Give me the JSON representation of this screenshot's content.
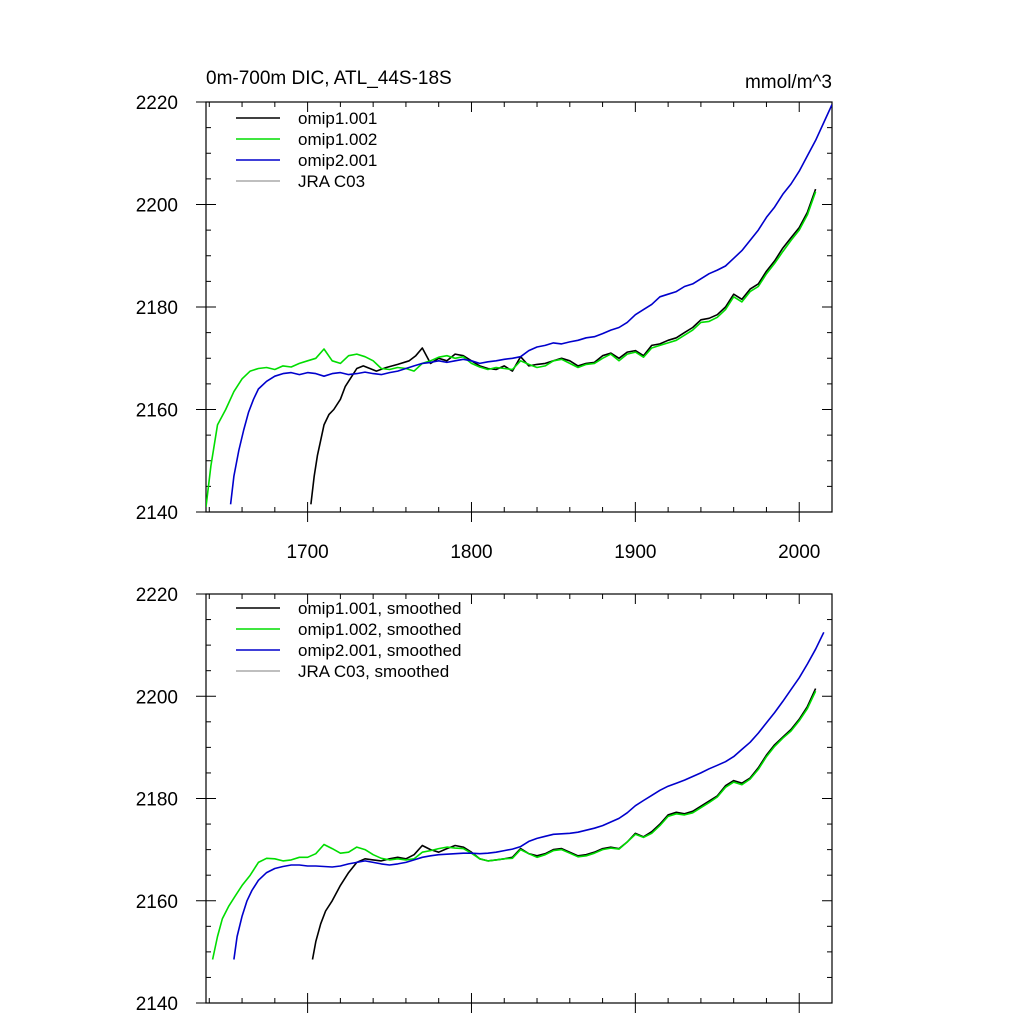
{
  "chart_data": [
    {
      "type": "line",
      "title": "0m-700m DIC, ATL_44S-18S",
      "units": "mmol/m^3",
      "xlim": [
        1638,
        2020
      ],
      "ylim": [
        2140,
        2220
      ],
      "xticks": [
        1700,
        1800,
        1900,
        2000
      ],
      "yticks": [
        2140,
        2160,
        2180,
        2200,
        2220
      ],
      "grid": false,
      "legend_position": "top-left",
      "series": [
        {
          "name": "omip1.001",
          "color": "#000000",
          "x": [
            1702,
            1704,
            1706,
            1708,
            1710,
            1713,
            1716,
            1720,
            1723,
            1726,
            1730,
            1734,
            1738,
            1742,
            1748,
            1755,
            1762,
            1766,
            1770,
            1775,
            1780,
            1785,
            1790,
            1795,
            1800,
            1805,
            1810,
            1815,
            1820,
            1825,
            1830,
            1835,
            1840,
            1845,
            1850,
            1855,
            1860,
            1865,
            1870,
            1875,
            1880,
            1885,
            1890,
            1895,
            1900,
            1905,
            1910,
            1915,
            1920,
            1925,
            1930,
            1935,
            1940,
            1945,
            1950,
            1955,
            1960,
            1965,
            1970,
            1975,
            1980,
            1985,
            1990,
            1995,
            2000,
            2005,
            2010
          ],
          "y": [
            2141.5,
            2147,
            2151,
            2154,
            2157,
            2159,
            2160,
            2162,
            2164.5,
            2166,
            2168,
            2168.5,
            2168,
            2167.5,
            2168.2,
            2168.8,
            2169.5,
            2170.5,
            2172,
            2169,
            2170,
            2169.5,
            2170.8,
            2170.5,
            2169.5,
            2168.5,
            2168,
            2167.8,
            2168.5,
            2167.5,
            2170.3,
            2168.5,
            2168.8,
            2169,
            2169.5,
            2170,
            2169.5,
            2168.5,
            2169,
            2169.2,
            2170.5,
            2171,
            2170,
            2171.2,
            2171.5,
            2170.5,
            2172.5,
            2172.8,
            2173.5,
            2174,
            2175,
            2176,
            2177.5,
            2177.8,
            2178.5,
            2180,
            2182.5,
            2181.5,
            2183.5,
            2184.5,
            2187,
            2189,
            2191.5,
            2193.5,
            2195.5,
            2198.5,
            2203
          ]
        },
        {
          "name": "omip1.002",
          "color": "#00dd00",
          "x": [
            1638,
            1641,
            1645,
            1650,
            1655,
            1660,
            1665,
            1670,
            1675,
            1680,
            1685,
            1690,
            1695,
            1700,
            1705,
            1710,
            1715,
            1720,
            1725,
            1730,
            1735,
            1740,
            1745,
            1750,
            1755,
            1760,
            1765,
            1770,
            1775,
            1780,
            1785,
            1790,
            1795,
            1800,
            1805,
            1810,
            1815,
            1820,
            1825,
            1830,
            1835,
            1840,
            1845,
            1850,
            1855,
            1860,
            1865,
            1870,
            1875,
            1880,
            1885,
            1890,
            1895,
            1900,
            1905,
            1910,
            1915,
            1920,
            1925,
            1930,
            1935,
            1940,
            1945,
            1950,
            1955,
            1960,
            1965,
            1970,
            1975,
            1980,
            1985,
            1990,
            1995,
            2000,
            2005,
            2010
          ],
          "y": [
            2141,
            2149,
            2157,
            2160,
            2163.5,
            2166,
            2167.5,
            2168,
            2168.2,
            2167.8,
            2168.5,
            2168.3,
            2169,
            2169.5,
            2170,
            2171.8,
            2169.5,
            2169,
            2170.5,
            2170.8,
            2170.3,
            2169.5,
            2168,
            2167.8,
            2168.2,
            2168,
            2167.5,
            2169,
            2169.5,
            2170.2,
            2170.5,
            2170,
            2170.3,
            2169,
            2168.3,
            2167.8,
            2168.2,
            2168,
            2167.8,
            2169.5,
            2168.8,
            2168.2,
            2168.5,
            2169.5,
            2169.8,
            2169,
            2168.2,
            2168.8,
            2169,
            2170,
            2170.8,
            2169.5,
            2170.8,
            2171.2,
            2170.2,
            2172,
            2172.5,
            2173,
            2173.5,
            2174.5,
            2175.5,
            2177,
            2177.2,
            2178,
            2179.5,
            2182,
            2181,
            2183,
            2184,
            2186.5,
            2188.5,
            2190.8,
            2193,
            2195,
            2198,
            2202.5
          ]
        },
        {
          "name": "omip2.001",
          "color": "#0000cc",
          "x": [
            1653,
            1655,
            1658,
            1661,
            1664,
            1667,
            1670,
            1675,
            1680,
            1685,
            1690,
            1695,
            1700,
            1705,
            1710,
            1715,
            1720,
            1725,
            1730,
            1735,
            1740,
            1745,
            1750,
            1755,
            1760,
            1765,
            1770,
            1775,
            1780,
            1785,
            1790,
            1795,
            1800,
            1805,
            1810,
            1815,
            1820,
            1825,
            1830,
            1835,
            1840,
            1845,
            1850,
            1855,
            1860,
            1865,
            1870,
            1875,
            1880,
            1885,
            1890,
            1895,
            1900,
            1905,
            1910,
            1915,
            1920,
            1925,
            1930,
            1935,
            1940,
            1945,
            1950,
            1955,
            1960,
            1965,
            1970,
            1975,
            1980,
            1985,
            1990,
            1995,
            2000,
            2005,
            2010,
            2015,
            2020
          ],
          "y": [
            2141.5,
            2147,
            2152,
            2156,
            2159.5,
            2162,
            2164,
            2165.5,
            2166.5,
            2167,
            2167.2,
            2166.8,
            2167.2,
            2167,
            2166.5,
            2167,
            2167.2,
            2166.8,
            2167,
            2167.3,
            2167,
            2166.8,
            2167.2,
            2167.5,
            2168,
            2168.5,
            2169,
            2169.2,
            2169.5,
            2169.2,
            2169.5,
            2169.8,
            2169.5,
            2169,
            2169.3,
            2169.5,
            2169.8,
            2170,
            2170.3,
            2171.5,
            2172.2,
            2172.5,
            2173,
            2172.8,
            2173.2,
            2173.5,
            2174,
            2174.2,
            2174.8,
            2175.5,
            2176,
            2177,
            2178.5,
            2179.5,
            2180.5,
            2182,
            2182.5,
            2183,
            2184,
            2184.5,
            2185.5,
            2186.5,
            2187.2,
            2188,
            2189.5,
            2191,
            2193,
            2195,
            2197.5,
            2199.5,
            2202,
            2204,
            2206.5,
            2209.5,
            2212.5,
            2216,
            2219.5
          ]
        },
        {
          "name": "JRA C03",
          "color": "#aaaaaa",
          "x": [],
          "y": []
        }
      ]
    },
    {
      "type": "line",
      "title": "",
      "xlim": [
        1638,
        2020
      ],
      "ylim": [
        2140,
        2220
      ],
      "yticks": [
        2140,
        2160,
        2180,
        2200,
        2220
      ],
      "grid": false,
      "legend_position": "top-left",
      "series": [
        {
          "name": "omip1.001, smoothed",
          "color": "#000000",
          "x": [
            1703,
            1705,
            1708,
            1711,
            1715,
            1720,
            1725,
            1730,
            1735,
            1740,
            1745,
            1750,
            1755,
            1760,
            1765,
            1770,
            1775,
            1780,
            1785,
            1790,
            1795,
            1800,
            1805,
            1810,
            1815,
            1820,
            1825,
            1830,
            1835,
            1840,
            1845,
            1850,
            1855,
            1860,
            1865,
            1870,
            1875,
            1880,
            1885,
            1890,
            1895,
            1900,
            1905,
            1910,
            1915,
            1920,
            1925,
            1930,
            1935,
            1940,
            1945,
            1950,
            1955,
            1960,
            1965,
            1970,
            1975,
            1980,
            1985,
            1990,
            1995,
            2000,
            2005,
            2010
          ],
          "y": [
            2148.5,
            2152,
            2155.5,
            2158,
            2160,
            2163,
            2165.5,
            2167.5,
            2168.2,
            2168,
            2167.8,
            2168.2,
            2168.5,
            2168.2,
            2169,
            2170.8,
            2170,
            2169.5,
            2170.2,
            2170.8,
            2170.5,
            2169.5,
            2168.2,
            2167.8,
            2168,
            2168.2,
            2168.5,
            2170.2,
            2169.2,
            2168.8,
            2169.2,
            2170,
            2170.2,
            2169.5,
            2168.8,
            2169,
            2169.5,
            2170.2,
            2170.5,
            2170.2,
            2171.5,
            2173.2,
            2172.5,
            2173.5,
            2175,
            2176.8,
            2177.3,
            2177,
            2177.5,
            2178.5,
            2179.5,
            2180.5,
            2182.5,
            2183.5,
            2183,
            2184,
            2186,
            2188.5,
            2190.5,
            2192,
            2193.5,
            2195.5,
            2198,
            2201.5
          ]
        },
        {
          "name": "omip1.002, smoothed",
          "color": "#00dd00",
          "x": [
            1642,
            1645,
            1648,
            1652,
            1656,
            1660,
            1665,
            1670,
            1675,
            1680,
            1685,
            1690,
            1695,
            1700,
            1705,
            1710,
            1715,
            1720,
            1725,
            1730,
            1735,
            1740,
            1745,
            1750,
            1755,
            1760,
            1765,
            1770,
            1775,
            1780,
            1785,
            1790,
            1795,
            1800,
            1805,
            1810,
            1815,
            1820,
            1825,
            1830,
            1835,
            1840,
            1845,
            1850,
            1855,
            1860,
            1865,
            1870,
            1875,
            1880,
            1885,
            1890,
            1895,
            1900,
            1905,
            1910,
            1915,
            1920,
            1925,
            1930,
            1935,
            1940,
            1945,
            1950,
            1955,
            1960,
            1965,
            1970,
            1975,
            1980,
            1985,
            1990,
            1995,
            2000,
            2005,
            2010
          ],
          "y": [
            2148.5,
            2153,
            2156.5,
            2159,
            2161,
            2163,
            2165,
            2167.5,
            2168.3,
            2168.2,
            2167.8,
            2168,
            2168.5,
            2168.5,
            2169.2,
            2171,
            2170.2,
            2169.3,
            2169.5,
            2170.5,
            2170,
            2169,
            2168.3,
            2168,
            2168.2,
            2168,
            2168.2,
            2169.5,
            2169.8,
            2170.2,
            2170.5,
            2170.3,
            2170.2,
            2169.3,
            2168.2,
            2167.8,
            2168,
            2168.2,
            2168.3,
            2170,
            2169.2,
            2168.5,
            2169,
            2169.8,
            2170,
            2169.3,
            2168.6,
            2168.8,
            2169.3,
            2170,
            2170.3,
            2170.1,
            2171.5,
            2173,
            2172.4,
            2173.2,
            2174.7,
            2176.5,
            2177,
            2176.8,
            2177.2,
            2178.2,
            2179.2,
            2180.3,
            2182.2,
            2183.2,
            2182.7,
            2183.8,
            2185.7,
            2188.2,
            2190.2,
            2191.8,
            2193.2,
            2195.2,
            2197.6,
            2201
          ]
        },
        {
          "name": "omip2.001, smoothed",
          "color": "#0000cc",
          "x": [
            1655,
            1657,
            1660,
            1663,
            1666,
            1670,
            1675,
            1680,
            1685,
            1690,
            1695,
            1700,
            1705,
            1710,
            1715,
            1720,
            1725,
            1730,
            1735,
            1740,
            1745,
            1750,
            1755,
            1760,
            1765,
            1770,
            1775,
            1780,
            1785,
            1790,
            1795,
            1800,
            1805,
            1810,
            1815,
            1820,
            1825,
            1830,
            1835,
            1840,
            1845,
            1850,
            1855,
            1860,
            1865,
            1870,
            1875,
            1880,
            1885,
            1890,
            1895,
            1900,
            1905,
            1910,
            1915,
            1920,
            1925,
            1930,
            1935,
            1940,
            1945,
            1950,
            1955,
            1960,
            1965,
            1970,
            1975,
            1980,
            1985,
            1990,
            1995,
            2000,
            2005,
            2010,
            2015
          ],
          "y": [
            2148.5,
            2153,
            2157,
            2160,
            2162,
            2164,
            2165.5,
            2166.3,
            2166.7,
            2167,
            2167,
            2166.8,
            2166.8,
            2166.7,
            2166.6,
            2166.8,
            2167.2,
            2167.5,
            2167.8,
            2167.5,
            2167.2,
            2167,
            2167.2,
            2167.5,
            2168,
            2168.5,
            2168.8,
            2169,
            2169.1,
            2169.2,
            2169.3,
            2169.3,
            2169.2,
            2169.3,
            2169.5,
            2169.8,
            2170.1,
            2170.6,
            2171.6,
            2172.2,
            2172.6,
            2173,
            2173.1,
            2173.2,
            2173.4,
            2173.8,
            2174.2,
            2174.7,
            2175.4,
            2176.1,
            2177.2,
            2178.6,
            2179.6,
            2180.6,
            2181.6,
            2182.4,
            2183,
            2183.6,
            2184.3,
            2185,
            2185.8,
            2186.5,
            2187.2,
            2188.2,
            2189.6,
            2191,
            2192.8,
            2194.8,
            2196.8,
            2199,
            2201.3,
            2203.6,
            2206.3,
            2209.2,
            2212.5
          ]
        },
        {
          "name": "JRA C03, smoothed",
          "color": "#aaaaaa",
          "x": [],
          "y": []
        }
      ]
    }
  ]
}
